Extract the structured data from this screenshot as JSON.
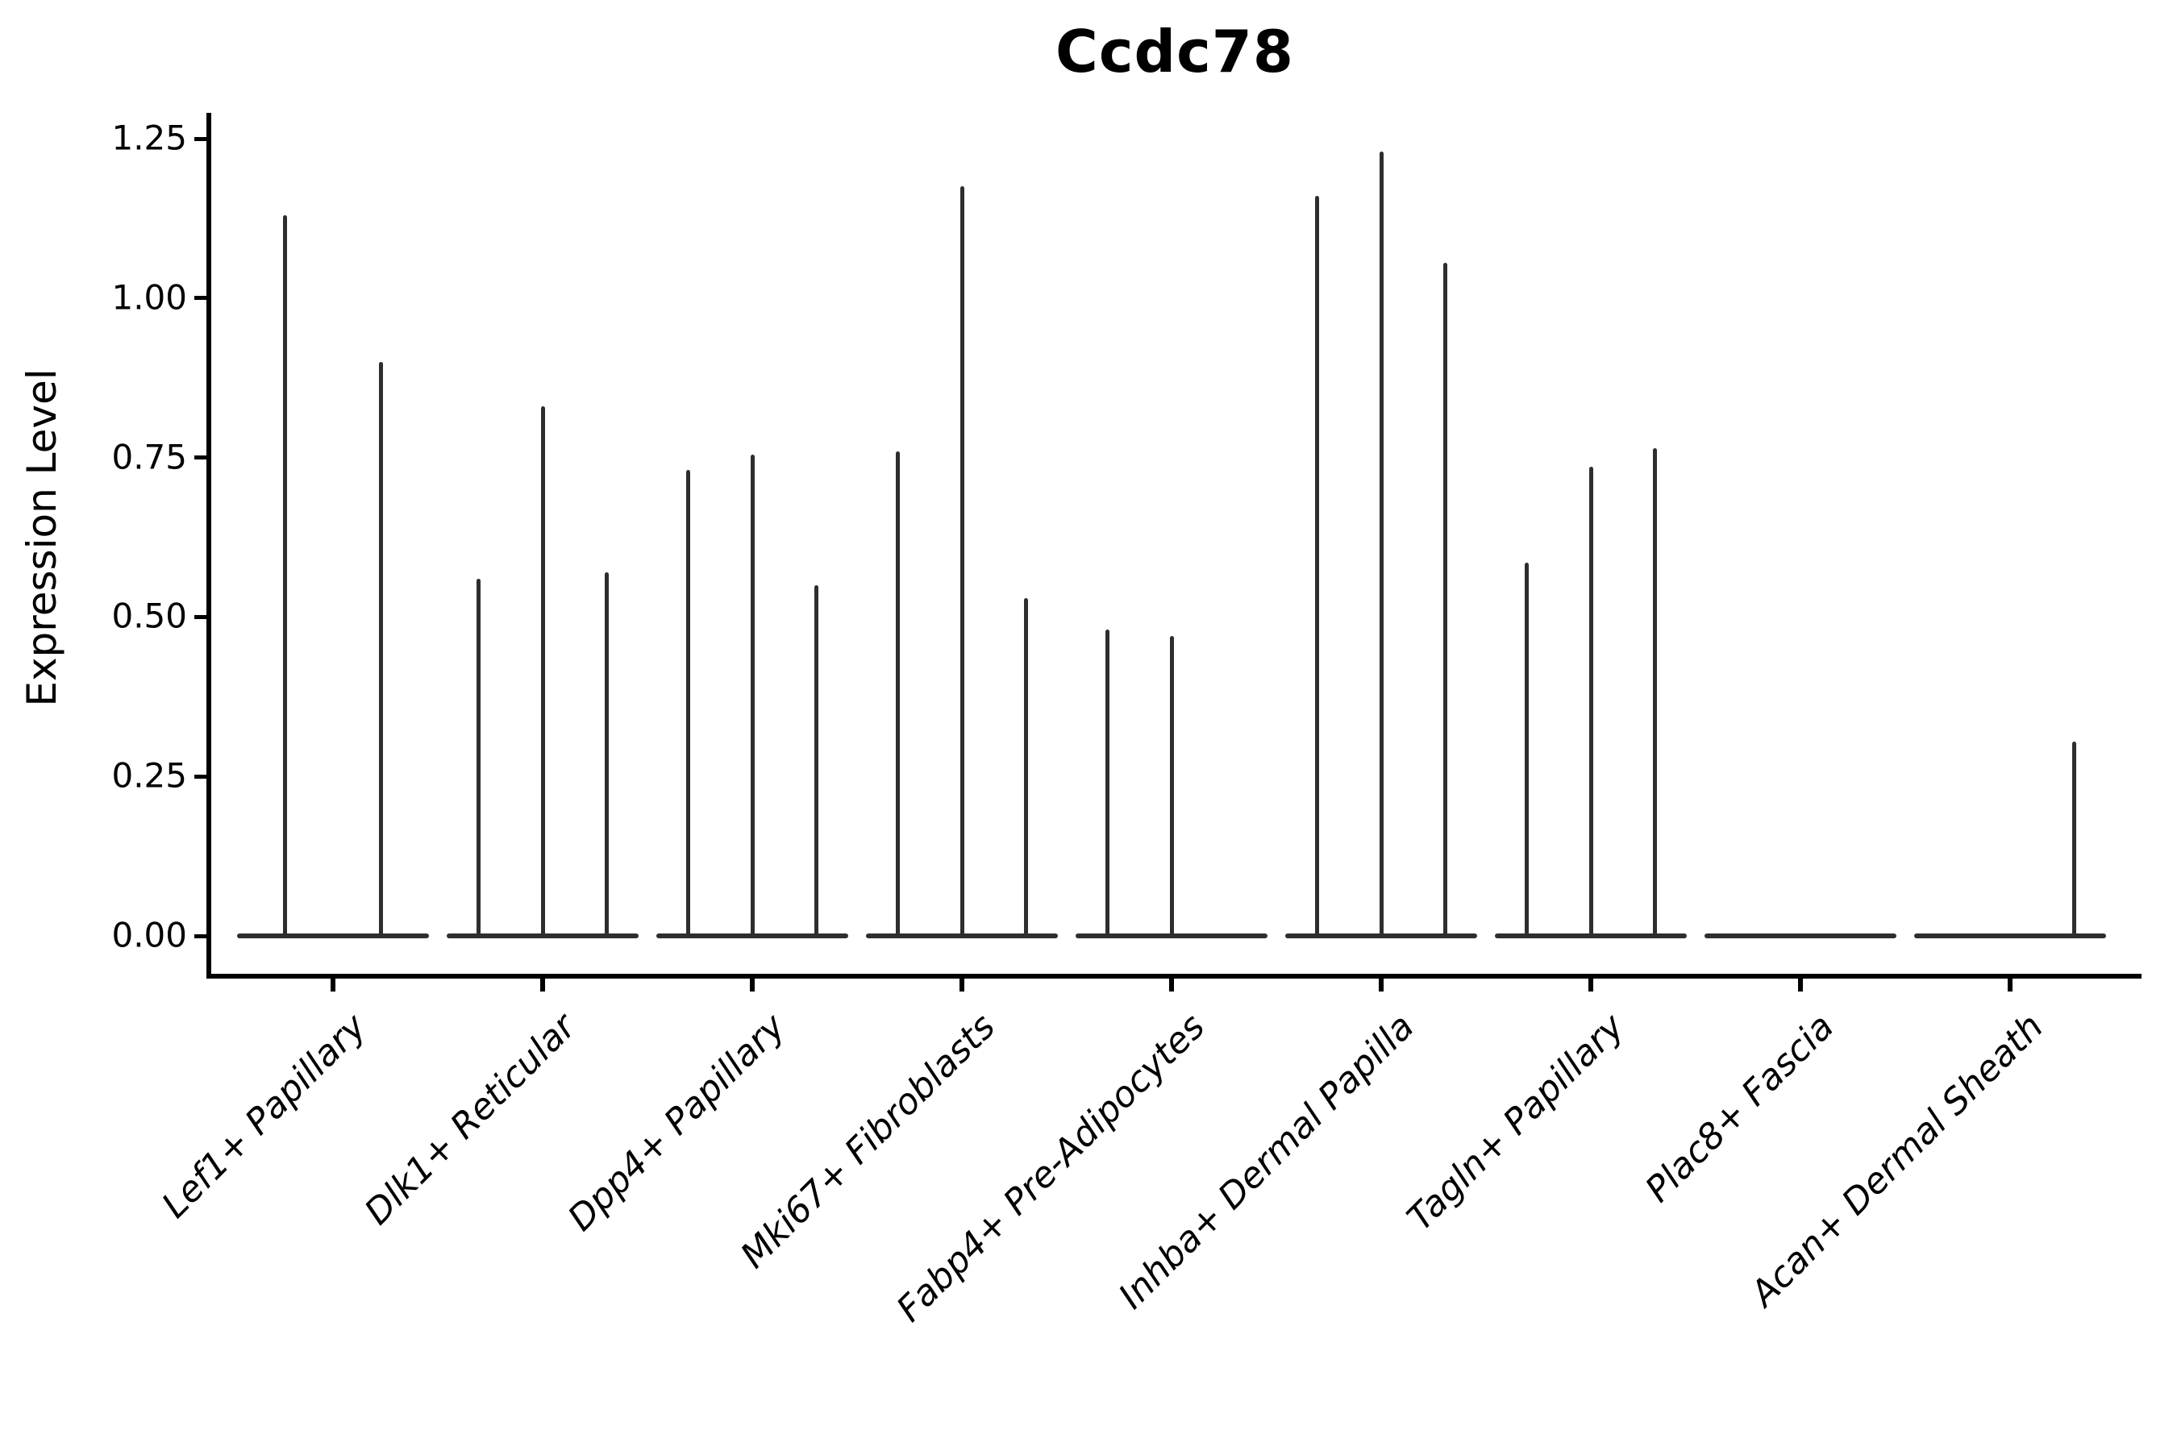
{
  "chart_data": {
    "type": "violin",
    "title": "Ccdc78",
    "ylabel": "Expression Level",
    "xlabel": "",
    "ylim": [
      0,
      1.29
    ],
    "grid": false,
    "legend": null,
    "yticks": [
      {
        "value": 0.0,
        "label": "0.00"
      },
      {
        "value": 0.25,
        "label": "0.25"
      },
      {
        "value": 0.5,
        "label": "0.50"
      },
      {
        "value": 0.75,
        "label": "0.75"
      },
      {
        "value": 1.0,
        "label": "1.00"
      },
      {
        "value": 1.25,
        "label": "1.25"
      }
    ],
    "categories": [
      "Lef1+ Papillary",
      "Dlk1+ Reticular",
      "Dpp4+ Papillary",
      "Mki67+ Fibroblasts",
      "Fabp4+ Pre-Adipocytes",
      "Inhba+ Dermal Papilla",
      "Tagln+ Papillary",
      "Plac8+ Fascia",
      "Acan+ Dermal Sheath"
    ],
    "groups": [
      {
        "category": "Lef1+ Papillary",
        "violin_max_values": [
          1.13,
          0.9
        ]
      },
      {
        "category": "Dlk1+ Reticular",
        "violin_max_values": [
          0.56,
          0.83,
          0.57
        ]
      },
      {
        "category": "Dpp4+ Papillary",
        "violin_max_values": [
          0.73,
          0.755,
          0.55
        ]
      },
      {
        "category": "Mki67+ Fibroblasts",
        "violin_max_values": [
          0.76,
          1.175,
          0.53
        ]
      },
      {
        "category": "Fabp4+ Pre-Adipocytes",
        "violin_max_values": [
          0.48,
          0.47,
          0
        ]
      },
      {
        "category": "Inhba+ Dermal Papilla",
        "violin_max_values": [
          1.16,
          1.23,
          1.055
        ]
      },
      {
        "category": "Tagln+ Papillary",
        "violin_max_values": [
          0.585,
          0.735,
          0.765
        ]
      },
      {
        "category": "Plac8+ Fascia",
        "violin_max_values": [
          0,
          0,
          0
        ]
      },
      {
        "category": "Acan+ Dermal Sheath",
        "violin_max_values": [
          0,
          0,
          0.305
        ]
      }
    ],
    "colors": {
      "violin": "#2e2e2e",
      "axis": "#000000",
      "text": "#000000",
      "background": "#ffffff"
    }
  }
}
